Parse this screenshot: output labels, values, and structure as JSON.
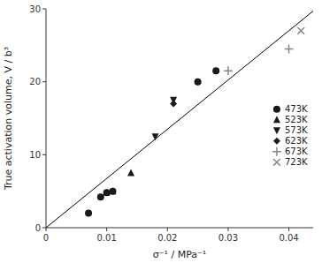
{
  "chart_data": {
    "type": "scatter",
    "xlabel": "σ⁻¹ / MPa⁻¹",
    "ylabel": "True activation volume, V / b³",
    "xlim": [
      0,
      0.044
    ],
    "ylim": [
      0,
      30
    ],
    "xticks": [
      0,
      0.01,
      0.02,
      0.03,
      0.04
    ],
    "yticks": [
      0,
      10,
      20,
      30
    ],
    "grid": false,
    "legend": "right",
    "series": [
      {
        "type": "line",
        "color": "#000000",
        "line_style": "solid",
        "x": [
          0.0,
          0.044
        ],
        "values": [
          0.0,
          29.7
        ]
      },
      {
        "name": "473K",
        "marker": "circle",
        "color": "#1a1a1a",
        "x": [
          0.007,
          0.009,
          0.01,
          0.011,
          0.025,
          0.028
        ],
        "values": [
          2.0,
          4.2,
          4.8,
          5.0,
          20.0,
          21.5
        ]
      },
      {
        "name": "523K",
        "marker": "triangle-up",
        "color": "#1a1a1a",
        "x": [
          0.01,
          0.011,
          0.014
        ],
        "values": [
          4.8,
          5.0,
          7.5
        ]
      },
      {
        "name": "573K",
        "marker": "triangle-down",
        "color": "#1a1a1a",
        "x": [
          0.018,
          0.021
        ],
        "values": [
          12.5,
          17.5
        ]
      },
      {
        "name": "623K",
        "marker": "diamond",
        "color": "#1a1a1a",
        "x": [
          0.021,
          0.025
        ],
        "values": [
          17.0,
          20.0
        ]
      },
      {
        "name": "673K",
        "marker": "plus",
        "color": "#888888",
        "x": [
          0.03,
          0.04
        ],
        "values": [
          21.5,
          24.5
        ]
      },
      {
        "name": "723K",
        "marker": "cross",
        "color": "#888888",
        "x": [
          0.042
        ],
        "values": [
          27.0
        ]
      }
    ]
  }
}
